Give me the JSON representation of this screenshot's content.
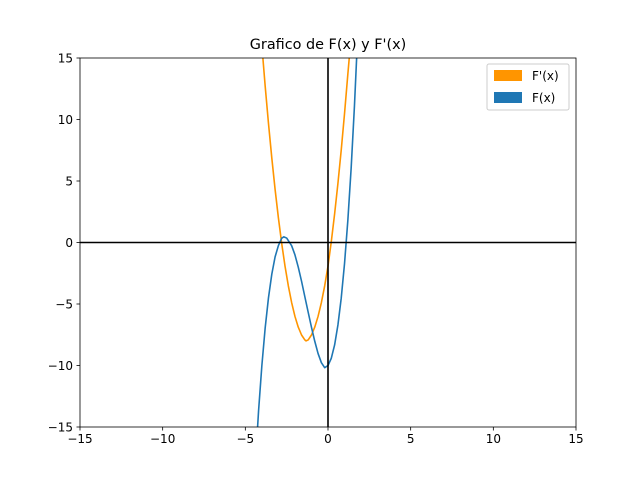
{
  "chart_data": {
    "type": "line",
    "title": "Grafico de F(x) y F'(x)",
    "xlabel": "",
    "ylabel": "",
    "xlim": [
      -15,
      15
    ],
    "ylim": [
      -15,
      15
    ],
    "xticks": [
      -15,
      -10,
      -5,
      0,
      5,
      10,
      15
    ],
    "yticks": [
      -15,
      -10,
      -5,
      0,
      5,
      10,
      15
    ],
    "xtick_labels": [
      "−15",
      "−10",
      "−5",
      "0",
      "5",
      "10",
      "15"
    ],
    "ytick_labels": [
      "−15",
      "−10",
      "−5",
      "0",
      "5",
      "10",
      "15"
    ],
    "grid": false,
    "legend_position": "top-right",
    "axis_lines": {
      "x_zero": true,
      "y_zero": true,
      "color": "#000000"
    },
    "series": [
      {
        "name": "F'(x)",
        "color": "#ff9500",
        "x": [
          -4.0,
          -3.8,
          -3.6,
          -3.4,
          -3.2,
          -3.0,
          -2.8,
          -2.6,
          -2.4,
          -2.2,
          -2.0,
          -1.8,
          -1.6,
          -1.4,
          -1.33,
          -1.2,
          -1.0,
          -0.8,
          -0.6,
          -0.4,
          -0.2,
          0.0,
          0.2,
          0.4,
          0.6,
          0.8,
          1.0,
          1.2,
          1.35
        ],
        "y": [
          16.0,
          12.72,
          9.68,
          6.88,
          4.32,
          2.0,
          -0.08,
          -1.92,
          -3.52,
          -4.88,
          -6.0,
          -6.88,
          -7.52,
          -7.92,
          -8.0,
          -7.92,
          -7.52,
          -6.88,
          -6.0,
          -4.88,
          -3.52,
          -1.92,
          0.08,
          2.32,
          4.8,
          7.52,
          10.48,
          13.68,
          16.0
        ]
      },
      {
        "name": "F(x)",
        "color": "#1f77b4",
        "x": [
          -4.3,
          -4.2,
          -4.0,
          -3.8,
          -3.6,
          -3.4,
          -3.2,
          -3.0,
          -2.8,
          -2.67,
          -2.5,
          -2.2,
          -2.0,
          -1.8,
          -1.6,
          -1.4,
          -1.2,
          -1.0,
          -0.8,
          -0.6,
          -0.4,
          -0.2,
          0.0,
          0.2,
          0.4,
          0.6,
          0.8,
          1.0,
          1.2,
          1.4,
          1.6,
          1.8,
          2.0
        ],
        "y": [
          -15.92,
          -13.69,
          -10.0,
          -6.95,
          -4.49,
          -2.58,
          -1.17,
          -0.25,
          0.35,
          0.46,
          0.36,
          -0.26,
          -1.0,
          -2.0,
          -3.15,
          -4.41,
          -5.66,
          -6.89,
          -8.03,
          -9.03,
          -9.77,
          -10.18,
          -10.0,
          -9.41,
          -8.33,
          -6.71,
          -4.52,
          -1.71,
          1.79,
          6.04,
          11.1,
          17.0,
          23.0
        ]
      }
    ]
  }
}
